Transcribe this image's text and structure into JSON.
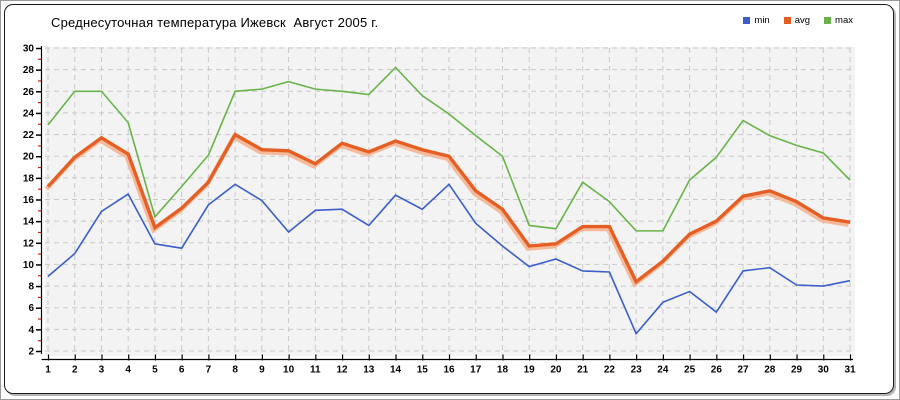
{
  "chart": {
    "title": "Среднесуточная температура Ижевск  Август 2005 г.",
    "plot_bg_color": "#f3f3f3",
    "gridline_color": "#c9c9c9",
    "axis_color": "#000000",
    "minor_tick_color": "#cc2222"
  },
  "chart_data": {
    "type": "line",
    "title": "Среднесуточная температура Ижевск  Август 2005 г.",
    "xlabel": "",
    "ylabel": "",
    "x": [
      1,
      2,
      3,
      4,
      5,
      6,
      7,
      8,
      9,
      10,
      11,
      12,
      13,
      14,
      15,
      16,
      17,
      18,
      19,
      20,
      21,
      22,
      23,
      24,
      25,
      26,
      27,
      28,
      29,
      30,
      31
    ],
    "ylim": [
      2,
      30
    ],
    "ytick_step": 2,
    "ytick_minor": true,
    "grid": true,
    "grid_style": "dashed",
    "legend_position": "top-right",
    "series": [
      {
        "name": "min",
        "color": "#3c5ec9",
        "width": 1.6,
        "values": [
          8.9,
          11.0,
          14.9,
          16.5,
          11.9,
          11.5,
          15.5,
          17.4,
          15.9,
          13.0,
          15.0,
          15.1,
          13.6,
          16.4,
          15.1,
          17.4,
          13.8,
          11.7,
          9.8,
          10.5,
          9.4,
          9.3,
          3.6,
          6.5,
          7.5,
          5.6,
          9.4,
          9.7,
          8.1,
          8.0,
          8.5
        ]
      },
      {
        "name": "avg",
        "color": "#e55f24",
        "halo_color": "#f6b491",
        "width": 3.4,
        "values": [
          17.2,
          19.9,
          21.7,
          20.2,
          13.4,
          15.2,
          17.6,
          22.0,
          20.6,
          20.5,
          19.3,
          21.2,
          20.4,
          21.4,
          20.6,
          20.0,
          16.8,
          15.1,
          11.7,
          11.9,
          13.5,
          13.5,
          8.4,
          10.3,
          12.8,
          14.0,
          16.3,
          16.8,
          15.8,
          14.3,
          13.9
        ]
      },
      {
        "name": "max",
        "color": "#69b34a",
        "width": 1.6,
        "values": [
          22.9,
          26.0,
          26.0,
          23.1,
          14.4,
          17.2,
          20.1,
          26.0,
          26.2,
          26.9,
          26.2,
          26.0,
          25.7,
          28.2,
          25.6,
          23.9,
          21.9,
          20.0,
          13.6,
          13.3,
          17.6,
          15.8,
          13.1,
          13.1,
          17.8,
          19.9,
          23.3,
          21.9,
          21.0,
          20.3,
          17.8
        ]
      }
    ]
  }
}
